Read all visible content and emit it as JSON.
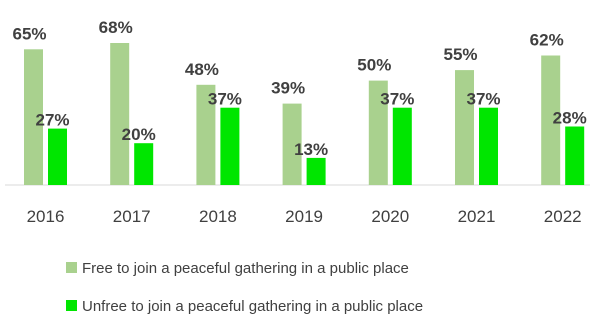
{
  "chart_data": {
    "type": "bar",
    "title": "",
    "xlabel": "",
    "ylabel": "",
    "ylim": [
      0,
      70
    ],
    "grid": false,
    "legend_position": "bottom",
    "categories": [
      "2016",
      "2017",
      "2018",
      "2019",
      "2020",
      "2021",
      "2022"
    ],
    "series": [
      {
        "name": "Free to join a peaceful gathering in a public place",
        "values": [
          65,
          68,
          48,
          39,
          50,
          55,
          62
        ],
        "labels": [
          "65%",
          "68%",
          "48%",
          "39%",
          "50%",
          "55%",
          "62%"
        ],
        "color": "#a9d18e"
      },
      {
        "name": "Unfree to join a peaceful gathering in a public place",
        "values": [
          27,
          20,
          37,
          13,
          37,
          37,
          28
        ],
        "labels": [
          "27%",
          "20%",
          "37%",
          "13%",
          "37%",
          "37%",
          "28%"
        ],
        "color": "#00e600"
      }
    ]
  }
}
